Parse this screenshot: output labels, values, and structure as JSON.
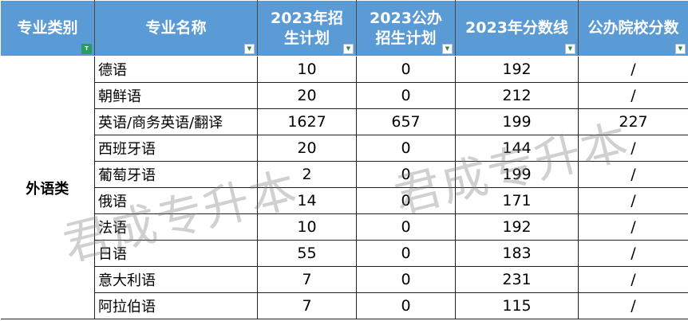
{
  "headers": [
    "专业类别",
    "专业名称",
    "2023年招生计划",
    "2023公办招生计划",
    "2023年分数线",
    "公办院校分数"
  ],
  "category": "外语类",
  "rows": [
    [
      "德语",
      "10",
      "0",
      "192",
      "/"
    ],
    [
      "朝鲜语",
      "20",
      "0",
      "212",
      "/"
    ],
    [
      "英语/商务英语/翻译",
      "1627",
      "657",
      "199",
      "227"
    ],
    [
      "西班牙语",
      "20",
      "0",
      "144",
      "/"
    ],
    [
      "葡萄牙语",
      "2",
      "0",
      "199",
      "/"
    ],
    [
      "俄语",
      "14",
      "0",
      "171",
      "/"
    ],
    [
      "法语",
      "10",
      "0",
      "192",
      "/"
    ],
    [
      "日语",
      "55",
      "0",
      "183",
      "/"
    ],
    [
      "意大利语",
      "7",
      "0",
      "231",
      "/"
    ],
    [
      "阿拉伯语",
      "7",
      "0",
      "115",
      "/"
    ]
  ],
  "watermark": "君成专升本",
  "colors": {
    "header": "#5b9bd5",
    "filter_active": "#2a9d5b"
  }
}
